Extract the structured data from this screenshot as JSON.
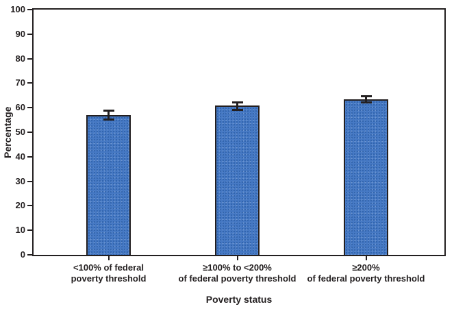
{
  "chart_data": {
    "type": "bar",
    "title": "",
    "xlabel": "Poverty status",
    "ylabel": "Percentage",
    "ylim": [
      0,
      100
    ],
    "yticks": [
      0,
      10,
      20,
      30,
      40,
      50,
      60,
      70,
      80,
      90,
      100
    ],
    "categories": [
      [
        "<100% of federal",
        "poverty threshold"
      ],
      [
        "≥100% to <200%",
        "of federal poverty threshold"
      ],
      [
        "≥200%",
        "of federal poverty threshold"
      ]
    ],
    "series": [
      {
        "name": "Percentage",
        "values": [
          57,
          61,
          63.5
        ],
        "ci_upper": [
          59,
          62.4,
          64.8
        ],
        "ci_lower": [
          55.1,
          58.8,
          62
        ]
      }
    ],
    "grid": false,
    "legend": "none",
    "colors": {
      "bar_fill": "#4679c4",
      "bar_fill_dot": "#2c5ea6",
      "bar_border": "#231f20",
      "axis": "#231f20",
      "text": "#231f20",
      "error_bar": "#231f20",
      "background": "#ffffff"
    }
  }
}
